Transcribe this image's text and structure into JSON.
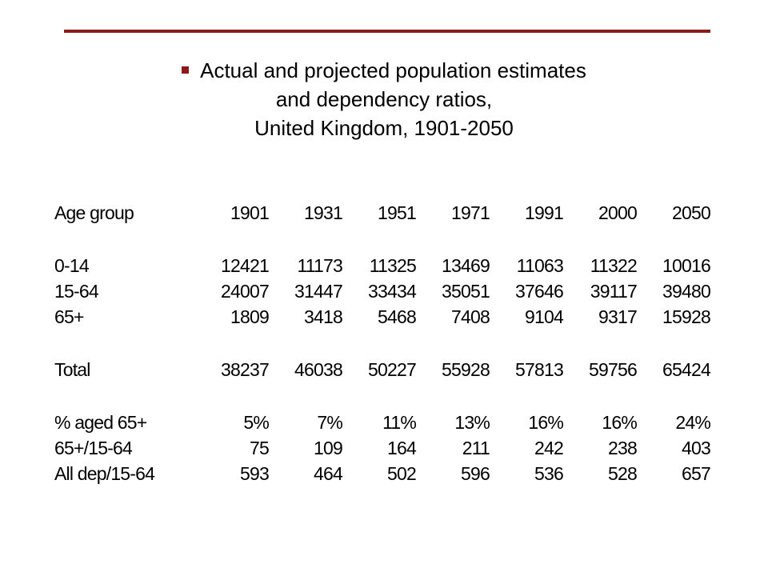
{
  "header": {
    "accent_color": "#8b1a1a",
    "bullet_icon": "square-bullet",
    "title_lines": [
      "Actual and projected population estimates",
      "and dependency ratios,",
      "United Kingdom, 1901-2050"
    ]
  },
  "table": {
    "columns": [
      "Age group",
      "1901",
      "1931",
      "1951",
      "1971",
      "1991",
      "2000",
      "2050"
    ],
    "rows": [
      [
        "0-14",
        "12421",
        "11173",
        "11325",
        "13469",
        "11063",
        "11322",
        "10016"
      ],
      [
        "15-64",
        "24007",
        "31447",
        "33434",
        "35051",
        "37646",
        "39117",
        "39480"
      ],
      [
        "65+",
        "1809",
        "3418",
        "5468",
        "7408",
        "9104",
        "9317",
        "15928"
      ],
      [
        "Total",
        "38237",
        "46038",
        "50227",
        "55928",
        "57813",
        "59756",
        "65424"
      ],
      [
        "% aged 65+",
        "5%",
        "7%",
        "11%",
        "13%",
        "16%",
        "16%",
        "24%"
      ],
      [
        "65+/15-64",
        "75",
        "109",
        "164",
        "211",
        "242",
        "238",
        "403"
      ],
      [
        "All dep/15-64",
        "593",
        "464",
        "502",
        "596",
        "536",
        "528",
        "657"
      ]
    ]
  }
}
